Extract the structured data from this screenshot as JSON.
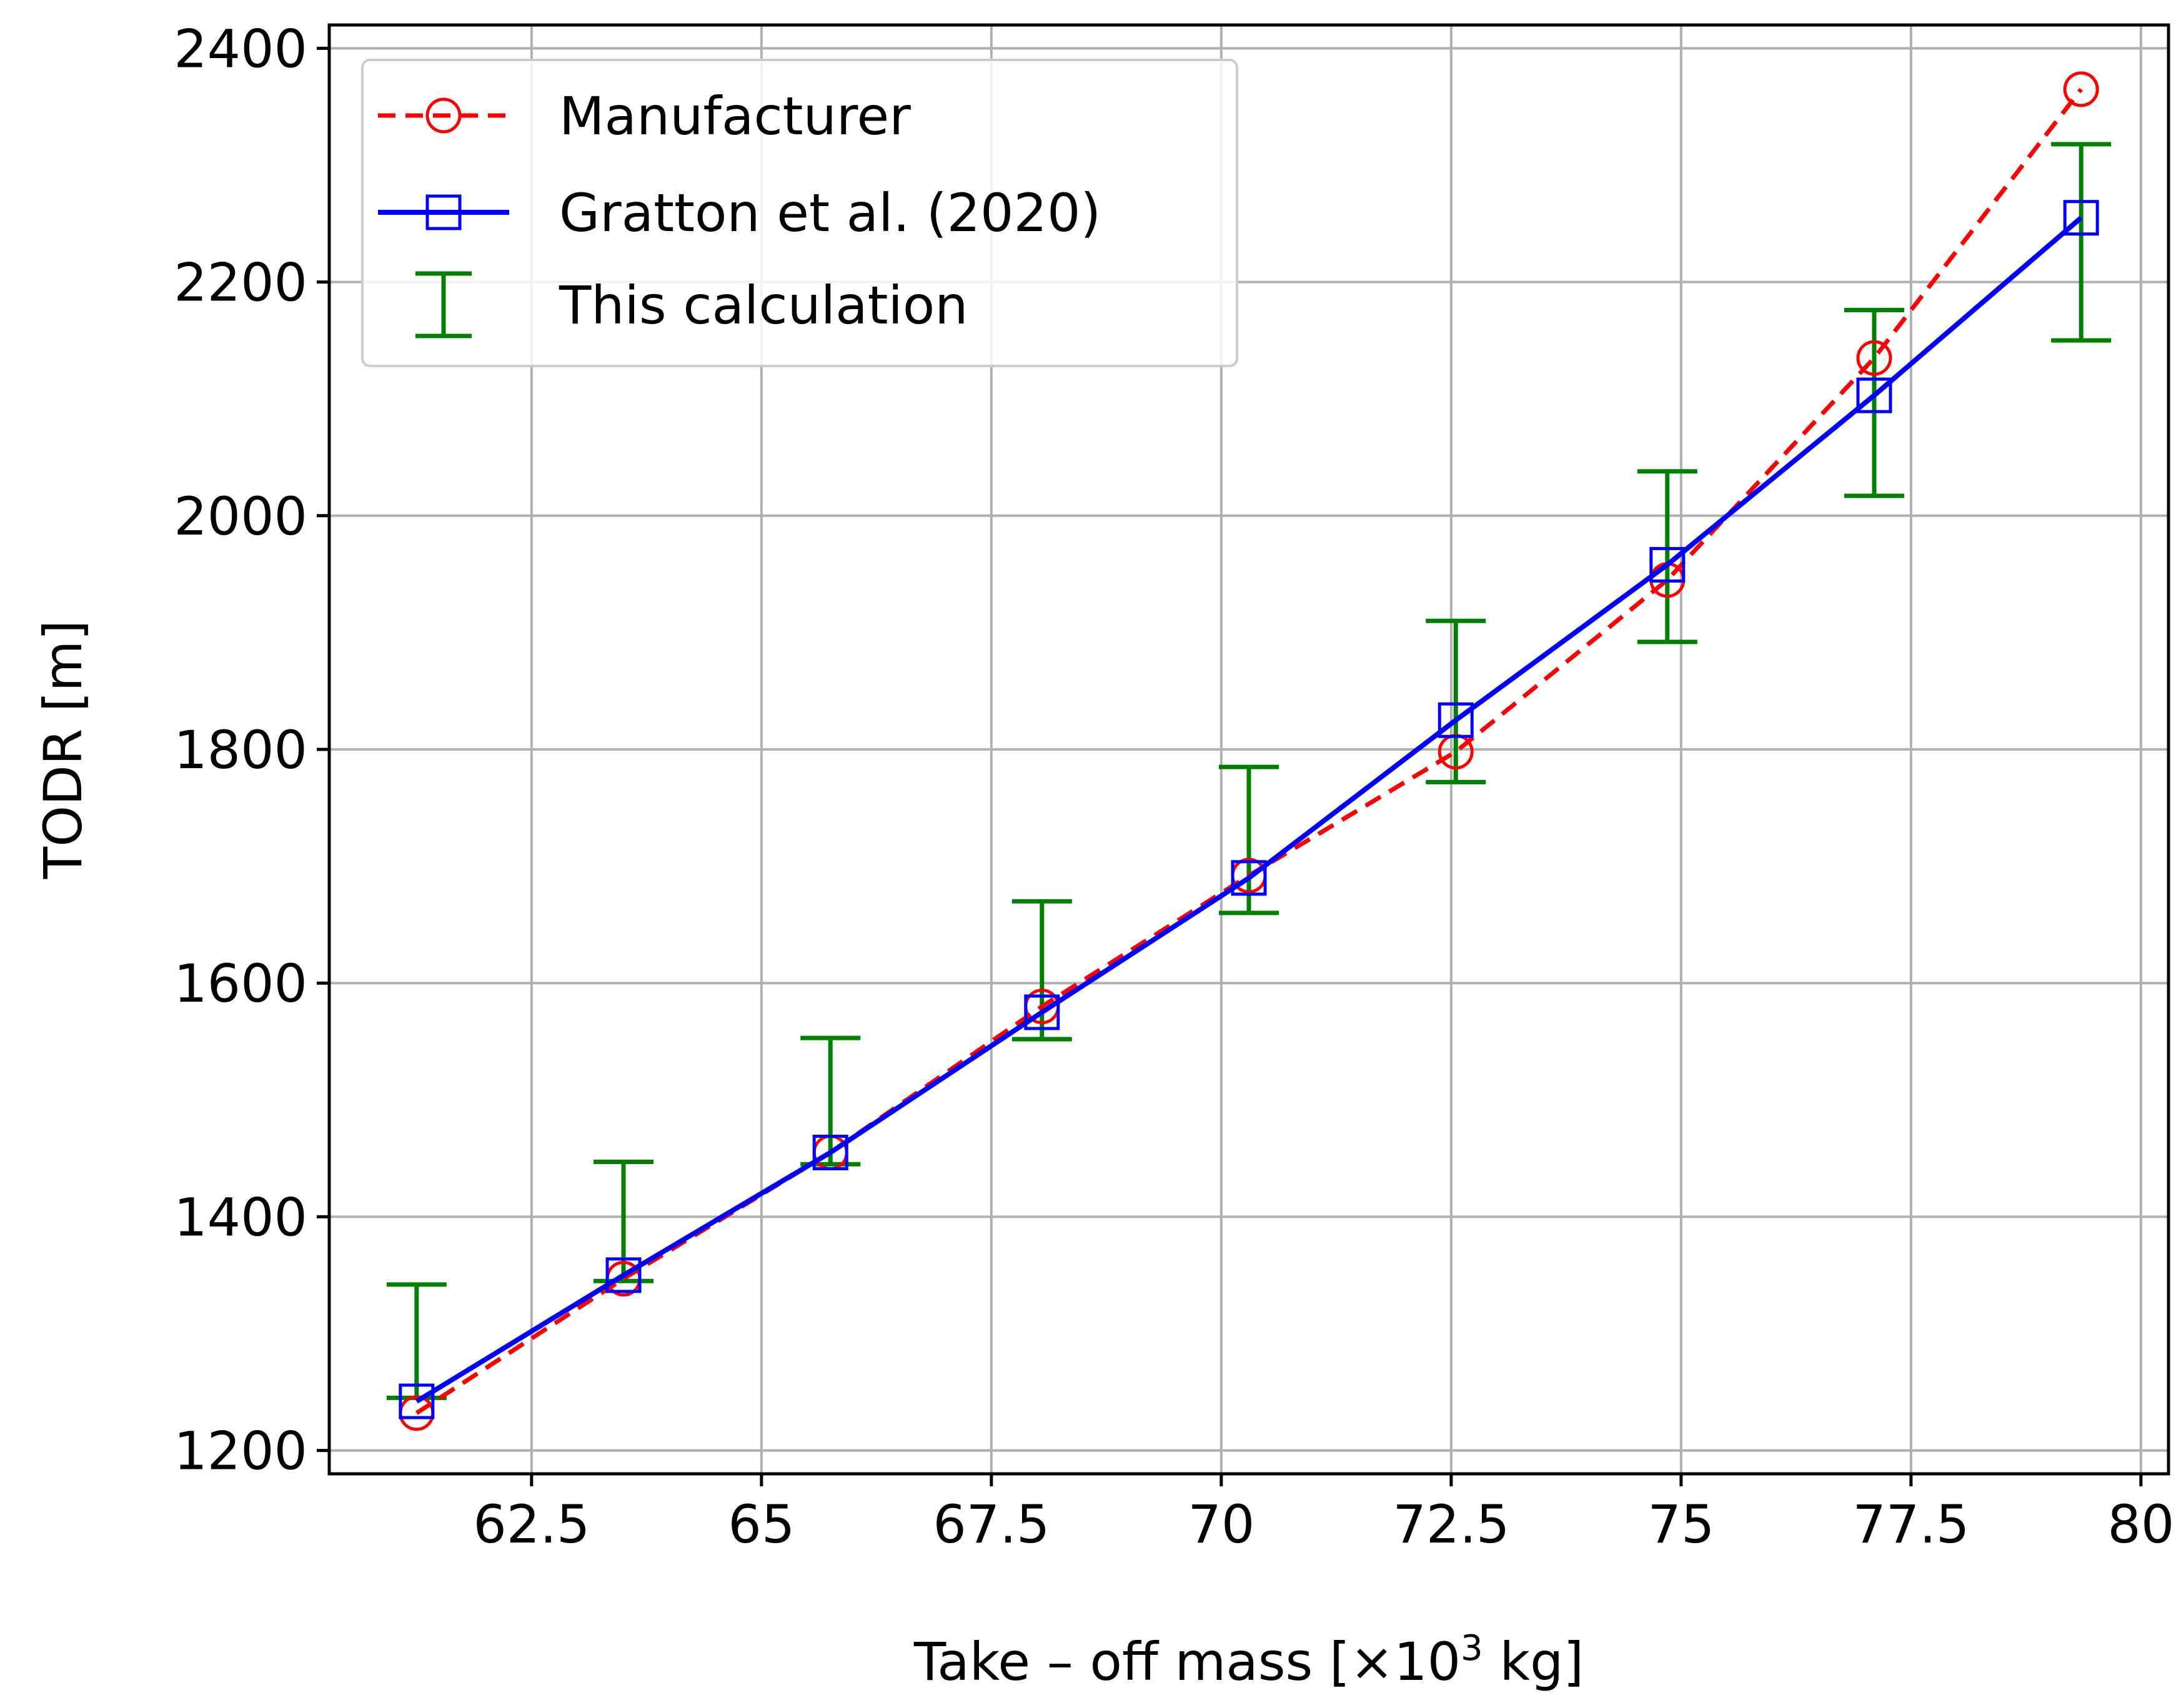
{
  "chart_data": {
    "type": "line",
    "title": "",
    "xlabel": "Take – off mass [×10",
    "xlabel_superscript": "3",
    "xlabel_suffix": " kg]",
    "ylabel": "TODR [m]",
    "xlim": [
      60.3,
      80.3
    ],
    "ylim": [
      1180,
      2420
    ],
    "x_ticks": [
      62.5,
      65,
      67.5,
      70,
      72.5,
      75,
      77.5,
      80
    ],
    "x_tick_labels": [
      "62.5",
      "65",
      "67.5",
      "70",
      "72.5",
      "75",
      "77.5",
      "80"
    ],
    "y_ticks": [
      1200,
      1400,
      1600,
      1800,
      2000,
      2200,
      2400
    ],
    "y_tick_labels": [
      "1200",
      "1400",
      "1600",
      "1800",
      "2000",
      "2200",
      "2400"
    ],
    "grid": true,
    "legend_position": "top-left",
    "series": [
      {
        "name": "Manufacturer",
        "style": "dashed",
        "marker": "circle",
        "color": "#ff0000",
        "x": [
          61.25,
          63.5,
          65.75,
          68.05,
          70.3,
          72.55,
          74.85,
          77.1,
          79.35
        ],
        "y": [
          1232,
          1347,
          1455,
          1580,
          1692,
          1798,
          1945,
          2135,
          2365
        ]
      },
      {
        "name": "Gratton et al. (2020)",
        "style": "solid",
        "marker": "square",
        "color": "#0000ff",
        "x": [
          61.25,
          63.5,
          65.75,
          68.05,
          70.3,
          72.55,
          74.85,
          77.1,
          79.35
        ],
        "y": [
          1242,
          1350,
          1455,
          1575,
          1690,
          1825,
          1958,
          2103,
          2255
        ]
      },
      {
        "name": "This calculation",
        "style": "errorbar",
        "color": "#008000",
        "x": [
          61.25,
          63.5,
          65.75,
          68.05,
          70.3,
          72.55,
          74.85,
          77.1,
          79.35
        ],
        "y_low": [
          1245,
          1345,
          1445,
          1552,
          1660,
          1772,
          1892,
          2017,
          2150
        ],
        "y_high": [
          1342,
          1447,
          1553,
          1670,
          1785,
          1910,
          2038,
          2176,
          2318
        ]
      }
    ]
  }
}
